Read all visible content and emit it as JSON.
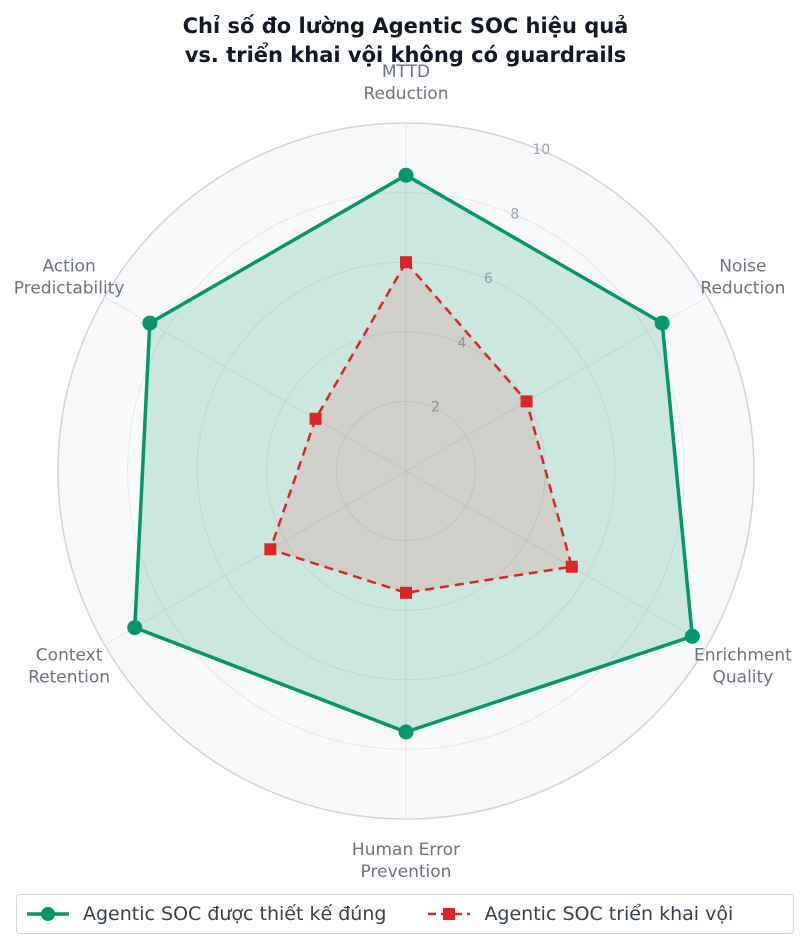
{
  "chart_data": {
    "type": "radar",
    "title_lines": [
      "Chỉ số đo lường Agentic SOC hiệu quả",
      "vs. triển khai vội không có guardrails"
    ],
    "axes": [
      {
        "line1": "MTTD",
        "line2": "Reduction"
      },
      {
        "line1": "Noise",
        "line2": "Reduction"
      },
      {
        "line1": "Enrichment",
        "line2": "Quality"
      },
      {
        "line1": "Human Error",
        "line2": "Prevention"
      },
      {
        "line1": "Context",
        "line2": "Retention"
      },
      {
        "line1": "Action",
        "line2": "Predictability"
      }
    ],
    "rlim": [
      0,
      10
    ],
    "ticks": [
      2,
      4,
      6,
      8,
      10
    ],
    "grid": true,
    "legend_position": "bottom",
    "series": [
      {
        "name": "Agentic SOC được thiết kế đúng",
        "values": [
          8.5,
          8.5,
          9.5,
          7.5,
          9,
          8.5
        ],
        "color": "#059669",
        "marker": "circle",
        "line": "solid"
      },
      {
        "name": "Agentic SOC triển khai vội",
        "values": [
          6,
          4,
          5.5,
          3.5,
          4.5,
          3
        ],
        "color": "#dc2626",
        "marker": "square",
        "line": "dashed"
      }
    ]
  }
}
